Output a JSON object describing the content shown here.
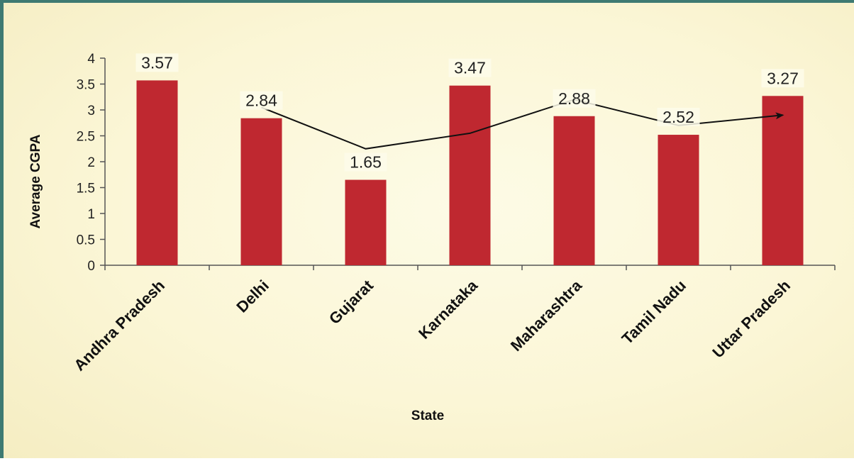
{
  "colors": {
    "bar": "#bf2830",
    "trend": "#111111",
    "frame": "#3e7a72"
  },
  "chart_data": {
    "type": "bar",
    "categories": [
      "Andhra Pradesh",
      "Delhi",
      "Gujarat",
      "Karnataka",
      "Maharashtra",
      "Tamil Nadu",
      "Uttar Pradesh"
    ],
    "values": [
      3.57,
      2.84,
      1.65,
      3.47,
      2.88,
      2.52,
      3.27
    ],
    "data_labels": [
      "3.57",
      "2.84",
      "1.65",
      "3.47",
      "2.88",
      "2.52",
      "3.27"
    ],
    "xlabel": "State",
    "ylabel": "Average CGPA",
    "ylim": [
      0,
      4
    ],
    "yticks": [
      0,
      0.5,
      1,
      1.5,
      2,
      2.5,
      3,
      3.5,
      4
    ],
    "ytick_labels": [
      "0",
      "0.5",
      "1",
      "1.5",
      "2",
      "2.5",
      "3",
      "3.5",
      "4"
    ],
    "grid": false,
    "legend": "none",
    "annotations": [
      {
        "type": "arrow-line",
        "from_category": "Delhi",
        "to_category": "Uttar Pradesh",
        "values": [
          3.05,
          2.25,
          2.55,
          3.2,
          2.7,
          2.9
        ]
      }
    ]
  }
}
